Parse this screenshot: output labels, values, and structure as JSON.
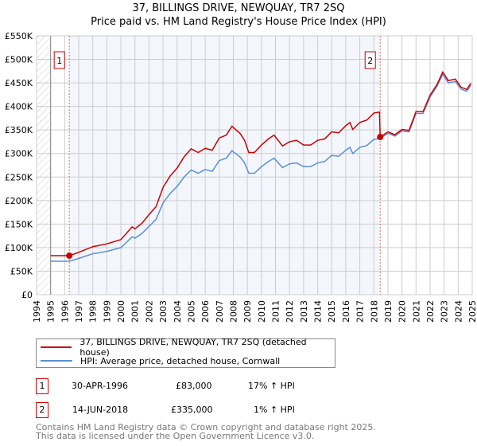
{
  "chart_data": {
    "type": "line",
    "title": "37, BILLINGS DRIVE, NEWQUAY, TR7 2SQ",
    "subtitle": "Price paid vs. HM Land Registry's House Price Index (HPI)",
    "xlim": [
      1994,
      2025
    ],
    "ylim": [
      0,
      550000
    ],
    "x_ticks": [
      "1994",
      "1995",
      "1996",
      "1997",
      "1998",
      "1999",
      "2000",
      "2001",
      "2002",
      "2003",
      "2004",
      "2005",
      "2006",
      "2007",
      "2008",
      "2009",
      "2010",
      "2011",
      "2012",
      "2013",
      "2014",
      "2015",
      "2016",
      "2017",
      "2018",
      "2019",
      "2020",
      "2021",
      "2022",
      "2023",
      "2024",
      "2025"
    ],
    "y_ticks": [
      {
        "v": 0,
        "label": "£0"
      },
      {
        "v": 50000,
        "label": "£50K"
      },
      {
        "v": 100000,
        "label": "£100K"
      },
      {
        "v": 150000,
        "label": "£150K"
      },
      {
        "v": 200000,
        "label": "£200K"
      },
      {
        "v": 250000,
        "label": "£250K"
      },
      {
        "v": 300000,
        "label": "£300K"
      },
      {
        "v": 350000,
        "label": "£350K"
      },
      {
        "v": 400000,
        "label": "£400K"
      },
      {
        "v": 450000,
        "label": "£450K"
      },
      {
        "v": 500000,
        "label": "£500K"
      },
      {
        "v": 550000,
        "label": "£550K"
      }
    ],
    "grid": true,
    "series": [
      {
        "name": "37, BILLINGS DRIVE, NEWQUAY, TR7 2SQ (detached house)",
        "color": "#cc0000",
        "x": [
          1995,
          1996.33,
          1997,
          1998,
          1999,
          2000,
          2000.8,
          2001,
          2001.5,
          2002,
          2002.5,
          2003,
          2003.5,
          2004,
          2004.5,
          2005,
          2005.5,
          2006,
          2006.5,
          2007,
          2007.5,
          2007.9,
          2008.5,
          2008.8,
          2009.1,
          2009.5,
          2010,
          2010.5,
          2010.9,
          2011.5,
          2012,
          2012.5,
          2013,
          2013.5,
          2014,
          2014.5,
          2015,
          2015.5,
          2016,
          2016.3,
          2016.5,
          2017,
          2017.5,
          2018,
          2018.4,
          2018.45,
          2019,
          2019.5,
          2020,
          2020.5,
          2021,
          2021.5,
          2022,
          2022.5,
          2022.9,
          2023.3,
          2023.8,
          2024.2,
          2024.6,
          2024.9
        ],
        "y": [
          83,
          83,
          90,
          102,
          108,
          117,
          144,
          140,
          152,
          170,
          187,
          228,
          252,
          269,
          293,
          310,
          302,
          311,
          307,
          333,
          339,
          358,
          342,
          328,
          302,
          302,
          318,
          331,
          339,
          316,
          325,
          328,
          318,
          318,
          328,
          331,
          346,
          344,
          359,
          366,
          351,
          366,
          371,
          386,
          388,
          335,
          346,
          340,
          351,
          349,
          389,
          389,
          424,
          447,
          473,
          455,
          458,
          441,
          436,
          449
        ]
      },
      {
        "name": "HPI: Average price, detached house, Cornwall",
        "color": "#5b8fd4",
        "x": [
          1995,
          1996.33,
          1997,
          1998,
          1999,
          2000,
          2000.8,
          2001,
          2001.5,
          2002,
          2002.5,
          2003,
          2003.5,
          2004,
          2004.5,
          2005,
          2005.5,
          2006,
          2006.5,
          2007,
          2007.5,
          2007.9,
          2008.5,
          2008.8,
          2009.1,
          2009.5,
          2010,
          2010.5,
          2010.9,
          2011.5,
          2012,
          2012.5,
          2013,
          2013.5,
          2014,
          2014.5,
          2015,
          2015.5,
          2016,
          2016.3,
          2016.5,
          2017,
          2017.5,
          2018,
          2018.45,
          2019,
          2019.5,
          2020,
          2020.5,
          2021,
          2021.5,
          2022,
          2022.5,
          2022.9,
          2023.3,
          2023.8,
          2024.2,
          2024.6,
          2024.9
        ],
        "y": [
          71,
          71,
          77,
          87,
          92,
          100,
          123,
          120,
          130,
          145,
          160,
          195,
          215,
          230,
          250,
          265,
          258,
          266,
          262,
          285,
          290,
          306,
          292,
          280,
          258,
          258,
          272,
          283,
          290,
          270,
          278,
          280,
          272,
          272,
          280,
          283,
          296,
          294,
          307,
          313,
          300,
          313,
          317,
          330,
          332,
          343,
          337,
          348,
          346,
          385,
          385,
          420,
          443,
          468,
          450,
          453,
          437,
          432,
          445
        ]
      }
    ],
    "y_units": "thousands GBP",
    "sales": [
      {
        "label": "1",
        "x": 1996.33,
        "value": 83
      },
      {
        "label": "2",
        "x": 2018.45,
        "value": 335
      }
    ],
    "legend_placement": "below"
  },
  "sales_table": [
    {
      "num": "1",
      "date": "30-APR-1996",
      "price": "£83,000",
      "hpi": "17% ↑ HPI"
    },
    {
      "num": "2",
      "date": "14-JUN-2018",
      "price": "£335,000",
      "hpi": "1% ↑ HPI"
    }
  ],
  "footer": [
    "Contains HM Land Registry data © Crown copyright and database right 2025.",
    "This data is licensed under the Open Government Licence v3.0."
  ]
}
